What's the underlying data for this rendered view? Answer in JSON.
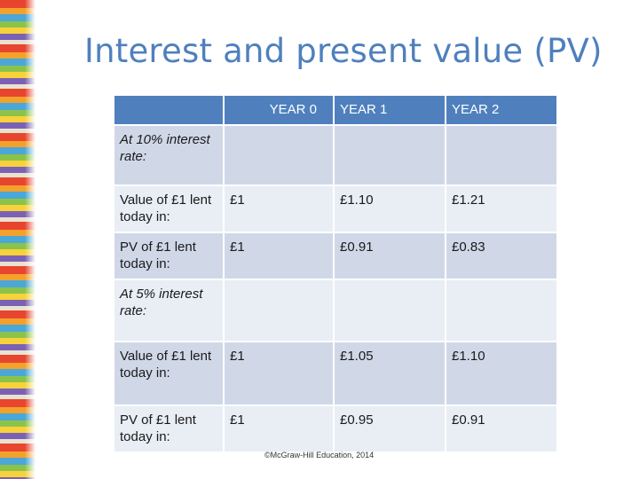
{
  "slide": {
    "title": "Interest and present value (PV)",
    "footer": "©McGraw-Hill Education, 2014"
  },
  "table": {
    "headers": [
      "YEAR 0",
      "YEAR 1",
      "YEAR 2"
    ],
    "rows": [
      {
        "label": "At 10% interest rate:",
        "italic": true,
        "values": [
          "",
          "",
          ""
        ]
      },
      {
        "label": "Value of £1 lent today in:",
        "italic": false,
        "values": [
          "£1",
          "£1.10",
          "£1.21"
        ]
      },
      {
        "label": "PV of £1 lent today in:",
        "italic": false,
        "values": [
          "£1",
          "£0.91",
          "£0.83"
        ]
      },
      {
        "label": "At 5% interest rate:",
        "italic": true,
        "values": [
          "",
          "",
          ""
        ]
      },
      {
        "label": "Value of £1 lent today in:",
        "italic": false,
        "values": [
          "£1",
          "£1.05",
          "£1.10"
        ]
      },
      {
        "label": "PV of £1 lent today in:",
        "italic": false,
        "values": [
          "£1",
          "£0.95",
          "£0.91"
        ]
      }
    ]
  },
  "colors": {
    "title": "#4f80bd",
    "header_bg": "#4f80bd",
    "row_band_a": "#d0d8e8",
    "row_band_b": "#e9edf4"
  }
}
